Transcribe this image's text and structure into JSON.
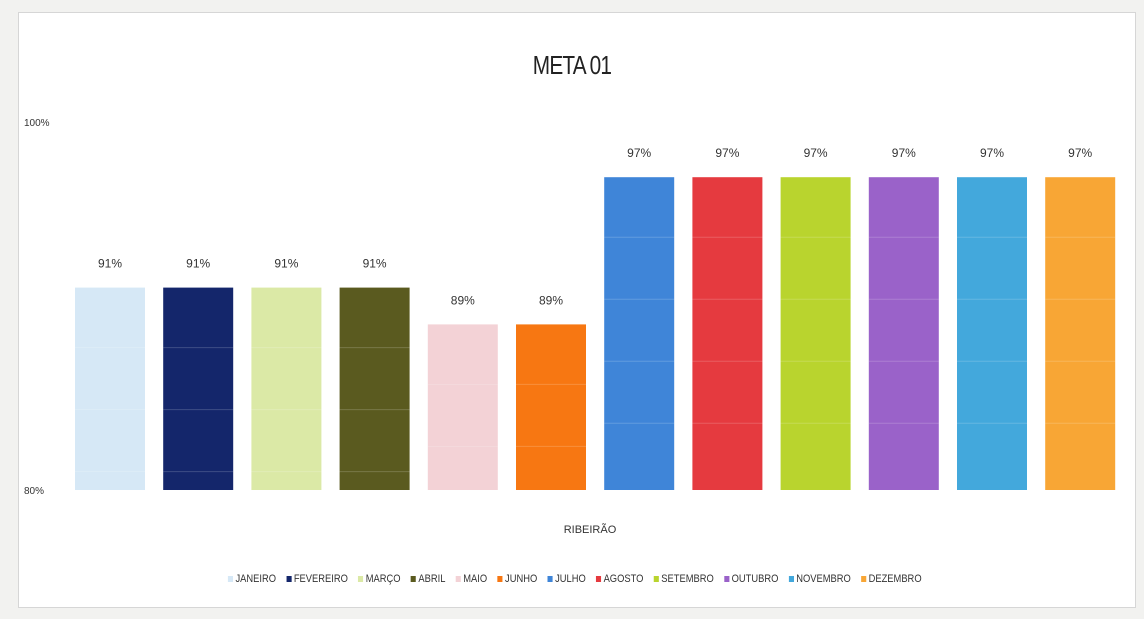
{
  "chart_data": {
    "type": "bar",
    "title": "META 01",
    "xlabel": "",
    "ylabel": "",
    "category_label": "RIBEIRÃO",
    "ylim": [
      80,
      100
    ],
    "y_ticks": [
      "100%",
      "80%"
    ],
    "grid": false,
    "legend_position": "bottom",
    "series": [
      {
        "name": "JANEIRO",
        "value": 91,
        "label": "91%",
        "color": "#d6e8f6"
      },
      {
        "name": "FEVEREIRO",
        "value": 91,
        "label": "91%",
        "color": "#14266b"
      },
      {
        "name": "MARÇO",
        "value": 91,
        "label": "91%",
        "color": "#dbe9a6"
      },
      {
        "name": "ABRIL",
        "value": 91,
        "label": "91%",
        "color": "#5a5a1f"
      },
      {
        "name": "MAIO",
        "value": 89,
        "label": "89%",
        "color": "#f3d2d6"
      },
      {
        "name": "JUNHO",
        "value": 89,
        "label": "89%",
        "color": "#f77712"
      },
      {
        "name": "JULHO",
        "value": 97,
        "label": "97%",
        "color": "#3f85d8"
      },
      {
        "name": "AGOSTO",
        "value": 97,
        "label": "97%",
        "color": "#e53a3f"
      },
      {
        "name": "SETEMBRO",
        "value": 97,
        "label": "97%",
        "color": "#b9d42e"
      },
      {
        "name": "OUTUBRO",
        "value": 97,
        "label": "97%",
        "color": "#9a62c9"
      },
      {
        "name": "NOVEMBRO",
        "value": 97,
        "label": "97%",
        "color": "#43a8dc"
      },
      {
        "name": "DEZEMBRO",
        "value": 97,
        "label": "97%",
        "color": "#f8a635"
      }
    ]
  }
}
